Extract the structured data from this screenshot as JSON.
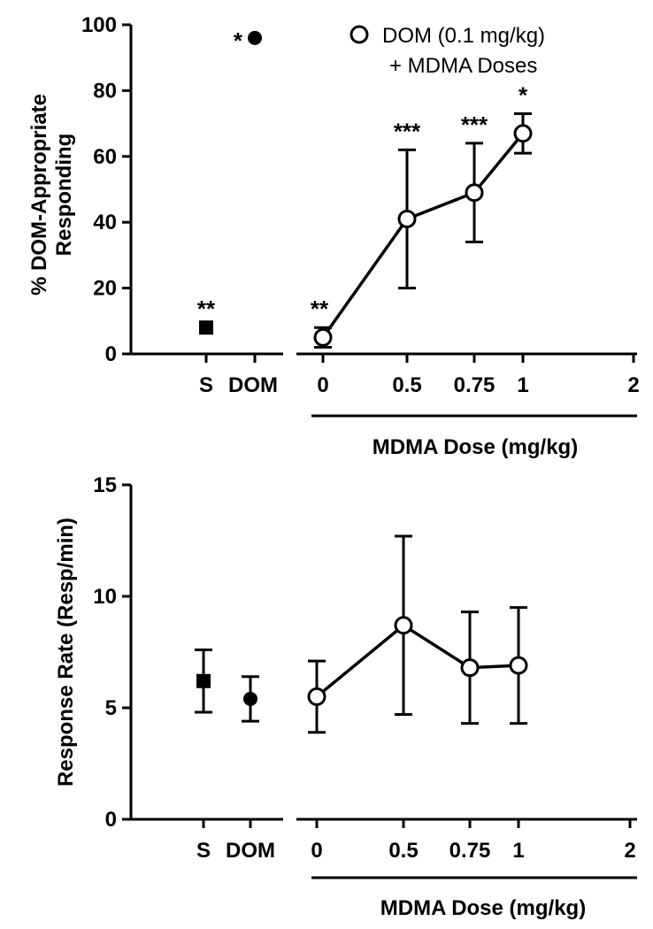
{
  "chart_data": [
    {
      "type": "scatter",
      "panel": "top",
      "ylabel_line1": "% DOM-Appropriate",
      "ylabel_line2": "Responding",
      "xlabel": "MDMA Dose (mg/kg)",
      "ylim": [
        0,
        100
      ],
      "yticks": [
        "0",
        "20",
        "40",
        "60",
        "80",
        "100"
      ],
      "control_categories": [
        "S",
        "DOM"
      ],
      "dose_ticks": [
        "0",
        "0.5",
        "0.75",
        "1",
        "2"
      ],
      "legend": {
        "line1": "DOM (0.1 mg/kg)",
        "line2": "+ MDMA Doses",
        "position": "top-right"
      },
      "controls": [
        {
          "name": "S",
          "marker": "square",
          "y": 8,
          "err": 0,
          "stars": "**"
        },
        {
          "name": "DOM",
          "marker": "circle",
          "y": 96,
          "err": 0,
          "stars": "*"
        }
      ],
      "series": [
        {
          "marker": "open-circle",
          "x": [
            0,
            0.5,
            0.75,
            1
          ],
          "y": [
            5,
            41,
            49,
            67
          ],
          "err": [
            3,
            21,
            15,
            6
          ],
          "stars": [
            "**",
            "***",
            "***",
            "*"
          ]
        }
      ]
    },
    {
      "type": "scatter",
      "panel": "bottom",
      "ylabel": "Response Rate (Resp/min)",
      "xlabel": "MDMA Dose (mg/kg)",
      "ylim": [
        0,
        15
      ],
      "yticks": [
        "0",
        "5",
        "10",
        "15"
      ],
      "control_categories": [
        "S",
        "DOM"
      ],
      "dose_ticks": [
        "0",
        "0.5",
        "0.75",
        "1",
        "2"
      ],
      "controls": [
        {
          "name": "S",
          "marker": "square",
          "y": 6.2,
          "err": 1.4
        },
        {
          "name": "DOM",
          "marker": "circle",
          "y": 5.4,
          "err": 1.0
        }
      ],
      "series": [
        {
          "marker": "open-circle",
          "x": [
            0,
            0.5,
            0.75,
            1
          ],
          "y": [
            5.5,
            8.7,
            6.8,
            6.9
          ],
          "err": [
            1.6,
            4.0,
            2.5,
            2.6
          ]
        }
      ]
    }
  ]
}
